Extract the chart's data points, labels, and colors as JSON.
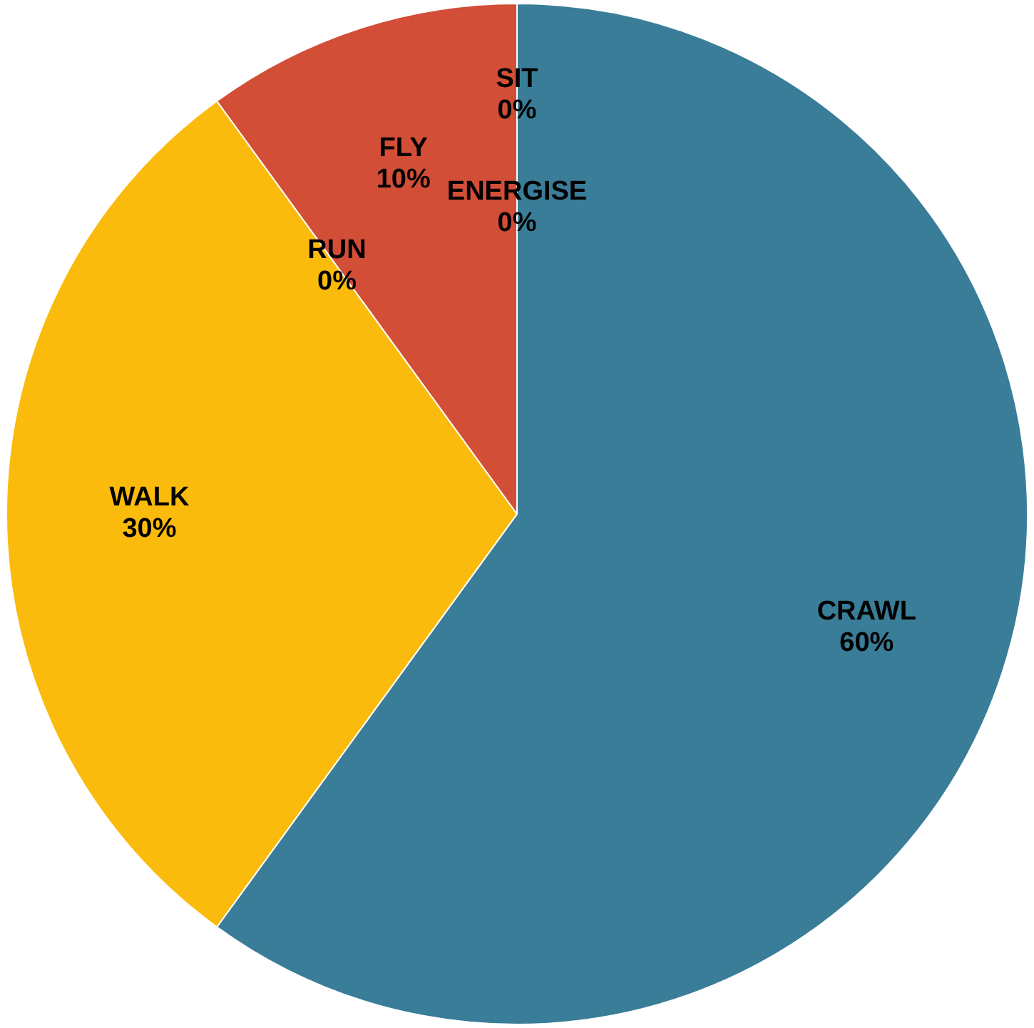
{
  "chart_data": {
    "type": "pie",
    "categories": [
      "ENERGISE",
      "CRAWL",
      "WALK",
      "RUN",
      "FLY",
      "SIT"
    ],
    "values": [
      0,
      60,
      30,
      0,
      10,
      0
    ],
    "value_labels": [
      "0%",
      "60%",
      "30%",
      "0%",
      "10%",
      "0%"
    ],
    "colors": [
      "#a5a5a5",
      "#3a7d98",
      "#fbbb0c",
      "#5b9bd5",
      "#d24e37",
      "#70ad47"
    ],
    "legend": false
  }
}
